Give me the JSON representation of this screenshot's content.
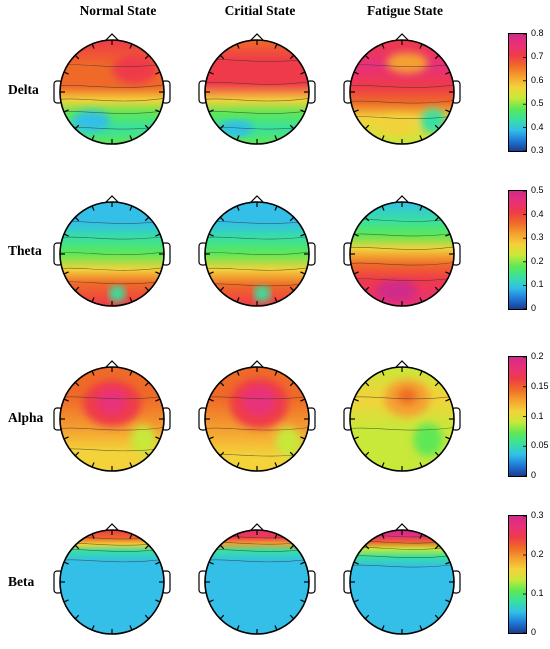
{
  "column_titles": [
    "Normal State",
    "Critial State",
    "Fatigue State"
  ],
  "rows": [
    {
      "label": "Delta",
      "colorbar_ticks": [
        "0.8",
        "0.7",
        "0.6",
        "0.5",
        "0.4",
        "0.3"
      ],
      "maps": [
        {
          "state": "Normal State",
          "pattern": "delta-normal"
        },
        {
          "state": "Critial State",
          "pattern": "delta-critical"
        },
        {
          "state": "Fatigue State",
          "pattern": "delta-fatigue"
        }
      ]
    },
    {
      "label": "Theta",
      "colorbar_ticks": [
        "0.5",
        "0.4",
        "0.3",
        "0.2",
        "0.1",
        "0"
      ],
      "maps": [
        {
          "state": "Normal State",
          "pattern": "theta-normal"
        },
        {
          "state": "Critial State",
          "pattern": "theta-critical"
        },
        {
          "state": "Fatigue State",
          "pattern": "theta-fatigue"
        }
      ]
    },
    {
      "label": "Alpha",
      "colorbar_ticks": [
        "0.2",
        "0.15",
        "0.1",
        "0.05",
        "0"
      ],
      "maps": [
        {
          "state": "Normal State",
          "pattern": "alpha-normal"
        },
        {
          "state": "Critial State",
          "pattern": "alpha-critical"
        },
        {
          "state": "Fatigue State",
          "pattern": "alpha-fatigue"
        }
      ]
    },
    {
      "label": "Beta",
      "colorbar_ticks": [
        "0.3",
        "0.2",
        "0.1",
        "0"
      ],
      "maps": [
        {
          "state": "Normal State",
          "pattern": "beta-normal"
        },
        {
          "state": "Critial State",
          "pattern": "beta-critical"
        },
        {
          "state": "Fatigue State",
          "pattern": "beta-fatigue"
        }
      ]
    }
  ],
  "colormap": [
    "#1a3a8a",
    "#1f78d8",
    "#33bfe8",
    "#38e0a0",
    "#5fe855",
    "#c8e83a",
    "#f3d23a",
    "#f5a030",
    "#ef6a28",
    "#ef3a4a",
    "#e8307a",
    "#d02a8a"
  ]
}
